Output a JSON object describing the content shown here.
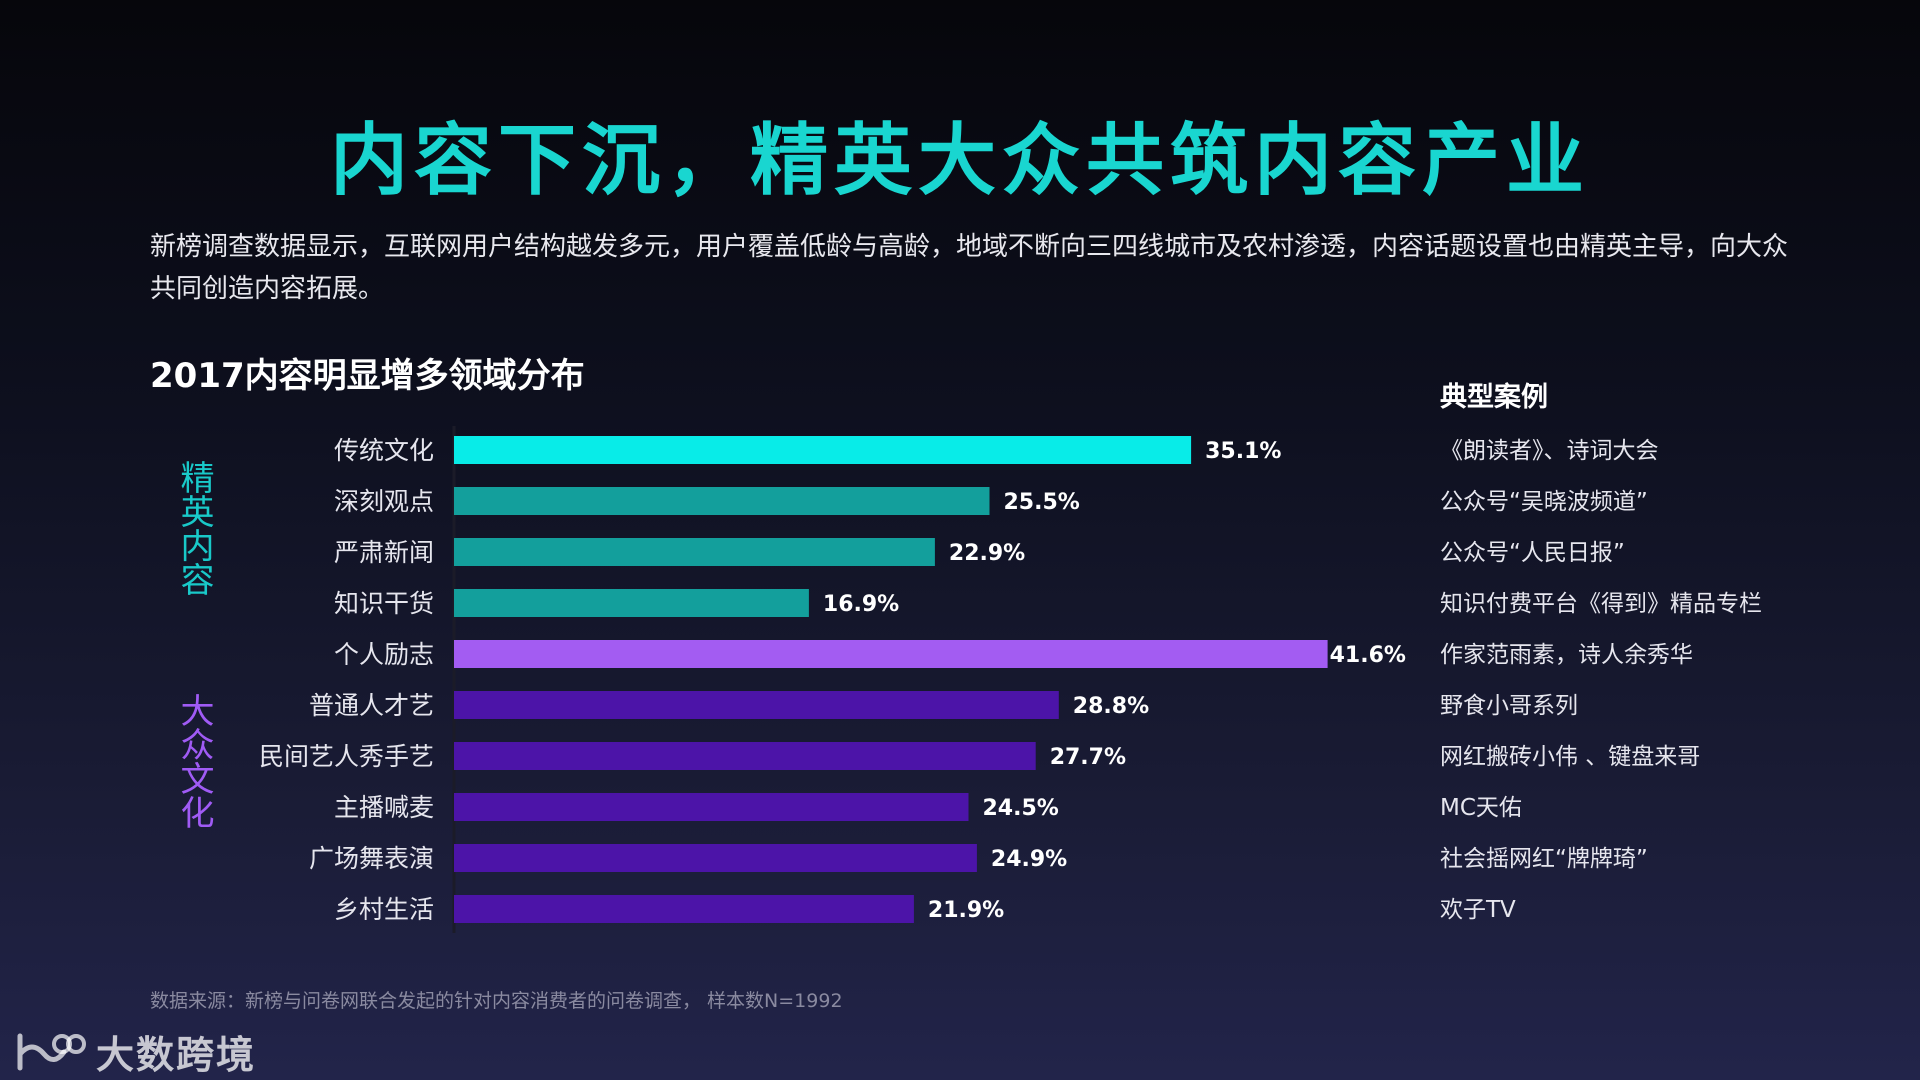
{
  "title": "内容下沉，精英大众共筑内容产业",
  "intro": "新榜调查数据显示，互联网用户结构越发多元，用户覆盖低龄与高龄，地域不断向三四线城市及农村渗透，内容话题设置也由精英主导，向大众共同创造内容拓展。",
  "chart_title": "2017内容明显增多领域分布",
  "cases_header": "典型案例",
  "groups": {
    "elite": "精英内容",
    "mass": "大众文化"
  },
  "colors": {
    "title": "#19d6d0",
    "highlight_elite": "#08ece8",
    "elite": "#139f9c",
    "highlight_mass": "#a35cf2",
    "mass": "#4c14a8"
  },
  "chart_data": {
    "type": "bar",
    "orientation": "horizontal",
    "categories": [
      "传统文化",
      "深刻观点",
      "严肃新闻",
      "知识干货",
      "个人励志",
      "普通人才艺",
      "民间艺人秀手艺",
      "主播喊麦",
      "广场舞表演",
      "乡村生活"
    ],
    "values": [
      35.1,
      25.5,
      22.9,
      16.9,
      41.6,
      28.8,
      27.7,
      24.5,
      24.9,
      21.9
    ],
    "value_labels": [
      "35.1%",
      "25.5%",
      "22.9%",
      "16.9%",
      "41.6%",
      "28.8%",
      "27.7%",
      "24.5%",
      "24.9%",
      "21.9%"
    ],
    "groups": [
      "elite",
      "elite",
      "elite",
      "elite",
      "mass",
      "mass",
      "mass",
      "mass",
      "mass",
      "mass"
    ],
    "highlight": [
      0,
      4
    ],
    "cases": [
      "《朗读者》、诗词大会",
      "公众号“吴晓波频道”",
      "公众号“人民日报”",
      "知识付费平台《得到》精品专栏",
      "作家范雨素，诗人余秀华",
      "野食小哥系列",
      "网红搬砖小伟 、键盘来哥",
      "MC天佑",
      "社会摇网红“牌牌琦”",
      "欢子TV"
    ],
    "unit": "%"
  },
  "footer": {
    "source": "数据来源：新榜与问卷网联合发起的针对内容消费者的问卷调查，   样本数N=1992",
    "logo_text": "大数跨境"
  }
}
